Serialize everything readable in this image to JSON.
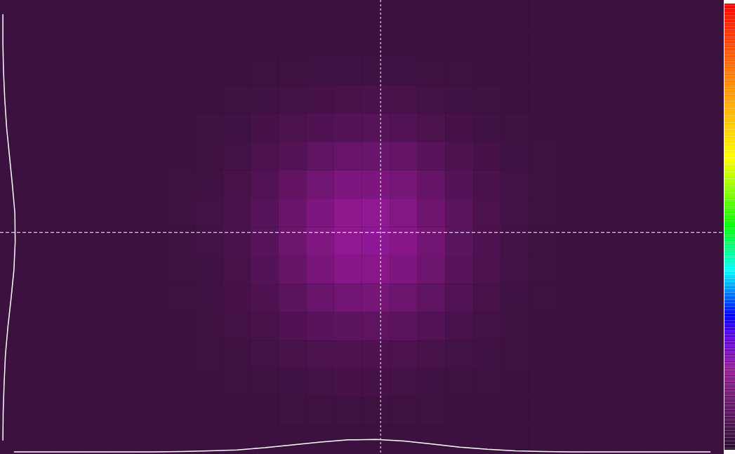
{
  "chart_data": {
    "type": "heatmap",
    "xlim": [
      0,
      26
    ],
    "ylim": [
      0,
      16
    ],
    "tick_labels": false,
    "cells": [
      [
        8,
        8,
        8,
        8,
        8,
        8,
        8,
        8,
        8,
        8,
        8,
        8,
        8,
        8,
        8,
        8,
        8,
        8,
        8,
        8,
        8,
        8,
        8,
        8,
        8,
        8
      ],
      [
        8,
        8,
        8,
        8,
        8,
        8,
        8,
        8,
        8,
        8,
        8,
        8,
        8,
        8,
        8,
        8,
        8,
        8,
        8,
        8,
        8,
        8,
        8,
        8,
        8,
        8
      ],
      [
        8,
        8,
        8,
        8,
        8,
        8,
        8,
        8,
        8,
        9,
        9,
        10,
        10,
        10,
        10,
        9,
        9,
        8,
        8,
        8,
        8,
        8,
        8,
        8,
        8,
        8
      ],
      [
        8,
        8,
        8,
        8,
        8,
        8,
        8,
        8,
        9,
        10,
        11,
        12,
        13,
        14,
        13,
        11,
        10,
        9,
        8,
        8,
        8,
        8,
        8,
        8,
        8,
        8
      ],
      [
        8,
        8,
        8,
        8,
        8,
        8,
        8,
        9,
        10,
        12,
        15,
        17,
        19,
        20,
        18,
        15,
        12,
        10,
        9,
        8,
        8,
        8,
        8,
        8,
        8,
        8
      ],
      [
        8,
        8,
        8,
        8,
        8,
        8,
        8,
        9,
        11,
        15,
        19,
        24,
        28,
        29,
        26,
        21,
        16,
        12,
        10,
        9,
        8,
        8,
        8,
        8,
        8,
        8
      ],
      [
        8,
        8,
        8,
        8,
        8,
        8,
        9,
        10,
        13,
        18,
        25,
        32,
        38,
        38,
        34,
        27,
        19,
        14,
        11,
        9,
        8,
        8,
        8,
        8,
        8,
        8
      ],
      [
        8,
        8,
        8,
        8,
        8,
        8,
        9,
        11,
        14,
        20,
        29,
        38,
        45,
        46,
        40,
        31,
        22,
        15,
        11,
        9,
        8,
        8,
        8,
        8,
        8,
        8
      ],
      [
        8,
        8,
        8,
        8,
        8,
        8,
        9,
        11,
        14,
        21,
        30,
        39,
        46,
        47,
        42,
        33,
        23,
        16,
        11,
        9,
        8,
        8,
        8,
        8,
        8,
        8
      ],
      [
        8,
        8,
        8,
        8,
        8,
        8,
        9,
        10,
        13,
        19,
        27,
        36,
        42,
        43,
        38,
        30,
        21,
        15,
        11,
        9,
        8,
        8,
        8,
        8,
        8,
        8
      ],
      [
        8,
        8,
        8,
        8,
        8,
        8,
        9,
        10,
        12,
        16,
        22,
        28,
        33,
        34,
        30,
        24,
        18,
        13,
        10,
        9,
        8,
        8,
        8,
        8,
        8,
        8
      ],
      [
        8,
        8,
        8,
        8,
        8,
        8,
        8,
        9,
        11,
        13,
        17,
        21,
        23,
        24,
        22,
        18,
        14,
        11,
        9,
        8,
        8,
        8,
        8,
        8,
        8,
        8
      ],
      [
        8,
        8,
        8,
        8,
        8,
        8,
        8,
        9,
        9,
        11,
        13,
        15,
        16,
        16,
        15,
        13,
        11,
        10,
        9,
        8,
        8,
        8,
        8,
        8,
        8,
        8
      ],
      [
        8,
        8,
        8,
        8,
        8,
        8,
        8,
        8,
        9,
        9,
        10,
        11,
        12,
        12,
        11,
        10,
        9,
        9,
        8,
        8,
        8,
        8,
        8,
        8,
        8,
        8
      ],
      [
        8,
        8,
        8,
        8,
        8,
        8,
        8,
        8,
        8,
        8,
        9,
        9,
        9,
        9,
        9,
        9,
        8,
        8,
        8,
        8,
        8,
        8,
        8,
        8,
        8,
        8
      ],
      [
        8,
        8,
        8,
        8,
        8,
        8,
        8,
        8,
        8,
        8,
        8,
        8,
        8,
        8,
        8,
        8,
        8,
        8,
        8,
        8,
        8,
        8,
        8,
        8,
        8,
        8
      ]
    ],
    "colorbar": {
      "range": [
        0,
        255
      ]
    },
    "crosshair": {
      "x": 13.66,
      "y": 8.18
    },
    "x_profile": [
      8,
      8,
      8,
      8,
      8,
      8,
      9,
      11,
      14,
      21,
      30,
      39,
      46,
      47,
      42,
      33,
      23,
      16,
      11,
      9,
      8,
      8,
      8,
      8,
      8,
      8
    ],
    "y_profile": [
      8,
      8,
      10,
      14,
      20,
      29,
      38,
      46,
      47,
      43,
      34,
      24,
      16,
      12,
      9,
      8
    ]
  }
}
